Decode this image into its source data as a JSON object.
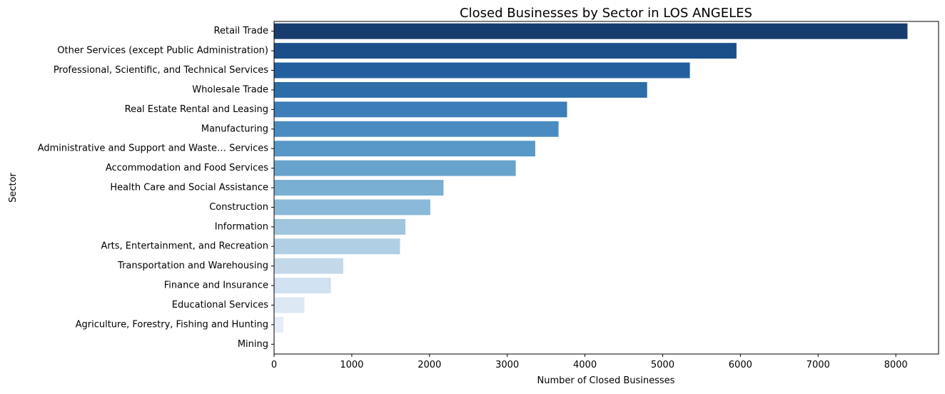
{
  "chart_data": {
    "type": "bar",
    "orientation": "horizontal",
    "title": "Closed Businesses by Sector in LOS ANGELES",
    "xlabel": "Number of Closed Businesses",
    "ylabel": "Sector",
    "xlim": [
      0,
      8550
    ],
    "xticks": [
      0,
      1000,
      2000,
      3000,
      4000,
      5000,
      6000,
      7000,
      8000
    ],
    "grid": false,
    "categories": [
      "Retail Trade",
      "Other Services (except Public Administration)",
      "Professional, Scientific, and Technical Services",
      "Wholesale Trade",
      "Real Estate Rental and Leasing",
      "Manufacturing",
      "Administrative and Support and Waste… Services",
      "Accommodation and Food Services",
      "Health Care and Social Assistance",
      "Construction",
      "Information",
      "Arts, Entertainment, and Recreation",
      "Transportation and Warehousing",
      "Finance and Insurance",
      "Educational Services",
      "Agriculture, Forestry, Fishing and Hunting",
      "Mining"
    ],
    "values": [
      8150,
      5950,
      5350,
      4800,
      3770,
      3660,
      3360,
      3110,
      2180,
      2010,
      1690,
      1620,
      890,
      730,
      390,
      120,
      5
    ],
    "colors": [
      "#173d6f",
      "#1a4f8a",
      "#235f9e",
      "#2d6da8",
      "#3d7db8",
      "#4a8cc2",
      "#5798c8",
      "#68a3cd",
      "#79afd3",
      "#8ab9d9",
      "#a0c5de",
      "#b1cfe4",
      "#c3d9ea",
      "#d0e1f1",
      "#dce8f4",
      "#e5eef8",
      "#f0f5fb"
    ]
  }
}
